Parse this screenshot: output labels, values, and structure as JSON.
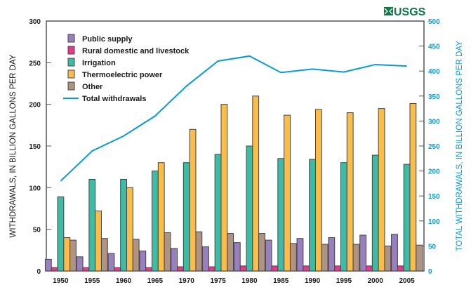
{
  "logo": {
    "text": "USGS",
    "color": "#0d7a4a"
  },
  "chart_data": {
    "type": "bar",
    "title": "",
    "xlabel": "",
    "ylabel": "WITHDRAWALS, IN BILLION GALLONS PER DAY",
    "ylabel_right": "TOTAL WITHDRAWALS, IN BILLION GALLONS PER DAY",
    "ylim": [
      0,
      300
    ],
    "ylim_right": [
      0,
      500
    ],
    "yticks": [
      0,
      50,
      100,
      150,
      200,
      250,
      300
    ],
    "yticks_right": [
      0,
      50,
      100,
      150,
      200,
      250,
      300,
      350,
      400,
      450,
      500
    ],
    "grid": false,
    "legend_position": "top-left",
    "categories": [
      "1950",
      "1955",
      "1960",
      "1965",
      "1970",
      "1975",
      "1980",
      "1985",
      "1990",
      "1995",
      "2000",
      "2005"
    ],
    "series": [
      {
        "name": "Public supply",
        "color": "#9880bf",
        "axis": "left",
        "values": [
          14,
          17,
          21,
          24,
          27,
          29,
          34,
          37,
          39,
          40,
          43,
          44
        ]
      },
      {
        "name": "Rural domestic and livestock",
        "color": "#e8388a",
        "axis": "left",
        "values": [
          4,
          4,
          4,
          4,
          5,
          5,
          6,
          6,
          6,
          6,
          6,
          6
        ]
      },
      {
        "name": "Irrigation",
        "color": "#3dbba6",
        "axis": "left",
        "values": [
          89,
          110,
          110,
          120,
          130,
          140,
          150,
          135,
          134,
          130,
          139,
          128
        ]
      },
      {
        "name": "Thermoelectric power",
        "color": "#fbbd4a",
        "axis": "left",
        "values": [
          40,
          72,
          100,
          130,
          170,
          200,
          210,
          187,
          194,
          190,
          195,
          201
        ]
      },
      {
        "name": "Other",
        "color": "#b09380",
        "axis": "left",
        "values": [
          37,
          39,
          38,
          46,
          47,
          45,
          45,
          33,
          32,
          32,
          30,
          31
        ]
      },
      {
        "name": "Total withdrawals",
        "type": "line",
        "color": "#0a9bd6",
        "axis": "right",
        "values": [
          180,
          240,
          270,
          310,
          370,
          420,
          430,
          397,
          404,
          398,
          413,
          410
        ]
      }
    ]
  }
}
